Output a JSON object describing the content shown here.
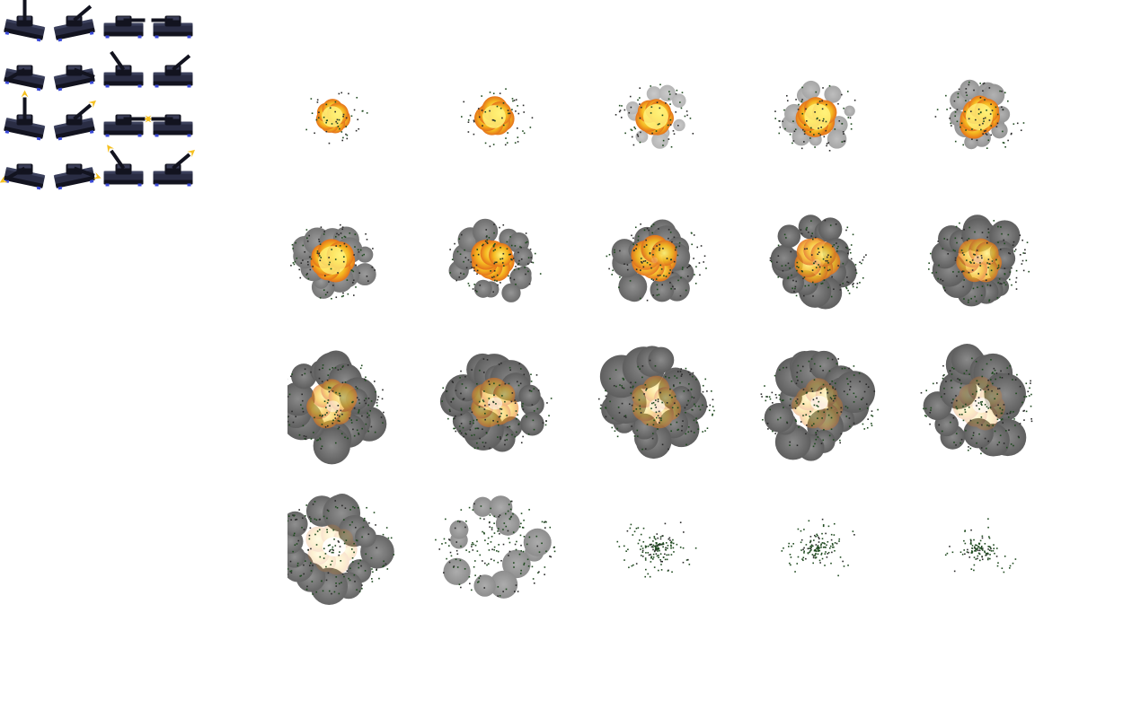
{
  "background": "#ffffff",
  "tank_sheet": {
    "columns": 4,
    "rows": 4,
    "sprites": [
      {
        "name": "tank-sprite-idle-up",
        "variant": "idle",
        "facing": "up"
      },
      {
        "name": "tank-sprite-idle-up-right",
        "variant": "idle",
        "facing": "up-right"
      },
      {
        "name": "tank-sprite-idle-right",
        "variant": "idle",
        "facing": "right"
      },
      {
        "name": "tank-sprite-idle-left",
        "variant": "idle",
        "facing": "left"
      },
      {
        "name": "tank-sprite-idle-down-left",
        "variant": "idle",
        "facing": "down-left"
      },
      {
        "name": "tank-sprite-idle-down-right",
        "variant": "idle",
        "facing": "down-right"
      },
      {
        "name": "tank-sprite-idle-up-left",
        "variant": "idle",
        "facing": "up-left"
      },
      {
        "name": "tank-sprite-idle-up-right-2",
        "variant": "idle",
        "facing": "up-right"
      },
      {
        "name": "tank-sprite-firing-up",
        "variant": "firing",
        "facing": "up"
      },
      {
        "name": "tank-sprite-firing-up-right",
        "variant": "firing",
        "facing": "up-right"
      },
      {
        "name": "tank-sprite-firing-right",
        "variant": "firing",
        "facing": "right"
      },
      {
        "name": "tank-sprite-firing-left",
        "variant": "firing",
        "facing": "left"
      },
      {
        "name": "tank-sprite-firing-down-left",
        "variant": "firing",
        "facing": "down-left"
      },
      {
        "name": "tank-sprite-firing-down-right",
        "variant": "firing",
        "facing": "down-right"
      },
      {
        "name": "tank-sprite-firing-up-left",
        "variant": "firing",
        "facing": "up-left"
      },
      {
        "name": "tank-sprite-firing-up-right-2",
        "variant": "firing",
        "facing": "up-right"
      }
    ],
    "colors": {
      "hull": "#2a2d44",
      "hull_dark": "#12131f",
      "hull_light": "#4a4e6e",
      "tread_accent": "#3a4ad8",
      "muzzle_flash": "#f5c020"
    }
  },
  "explosion_sheet": {
    "columns": 5,
    "rows": 4,
    "frame_count": 20,
    "colors": {
      "core": "#fff27a",
      "fire": "#f5b820",
      "fire_deep": "#e0601a",
      "smoke": "#5e5e5e",
      "smoke_light": "#8a8a8a",
      "debris": "#1f4a1f",
      "ember": "#2a2a2a"
    },
    "frames": [
      {
        "stage": "flash",
        "fire": 1.0,
        "smoke": 0.0,
        "hole": 0.0,
        "debris": 0.05,
        "size": 0.55
      },
      {
        "stage": "flash",
        "fire": 1.0,
        "smoke": 0.0,
        "hole": 0.0,
        "debris": 0.1,
        "size": 0.6
      },
      {
        "stage": "flash",
        "fire": 1.0,
        "smoke": 0.05,
        "hole": 0.0,
        "debris": 0.15,
        "size": 0.65
      },
      {
        "stage": "fireball",
        "fire": 1.0,
        "smoke": 0.15,
        "hole": 0.0,
        "debris": 0.25,
        "size": 0.68
      },
      {
        "stage": "fireball",
        "fire": 0.95,
        "smoke": 0.25,
        "hole": 0.0,
        "debris": 0.3,
        "size": 0.7
      },
      {
        "stage": "fireball",
        "fire": 0.9,
        "smoke": 0.45,
        "hole": 0.0,
        "debris": 0.4,
        "size": 0.74
      },
      {
        "stage": "fireball",
        "fire": 0.85,
        "smoke": 0.5,
        "hole": 0.05,
        "debris": 0.45,
        "size": 0.76
      },
      {
        "stage": "fireball",
        "fire": 0.8,
        "smoke": 0.55,
        "hole": 0.1,
        "debris": 0.5,
        "size": 0.78
      },
      {
        "stage": "fireball",
        "fire": 0.7,
        "smoke": 0.6,
        "hole": 0.15,
        "debris": 0.55,
        "size": 0.8
      },
      {
        "stage": "fireball",
        "fire": 0.6,
        "smoke": 0.65,
        "hole": 0.2,
        "debris": 0.6,
        "size": 0.82
      },
      {
        "stage": "smoke-ring",
        "fire": 0.45,
        "smoke": 0.8,
        "hole": 0.3,
        "debris": 0.7,
        "size": 0.88
      },
      {
        "stage": "smoke-ring",
        "fire": 0.4,
        "smoke": 0.8,
        "hole": 0.32,
        "debris": 0.75,
        "size": 0.9
      },
      {
        "stage": "smoke-ring",
        "fire": 0.3,
        "smoke": 0.8,
        "hole": 0.35,
        "debris": 0.8,
        "size": 0.92
      },
      {
        "stage": "smoke-ring",
        "fire": 0.2,
        "smoke": 0.75,
        "hole": 0.38,
        "debris": 0.85,
        "size": 0.94
      },
      {
        "stage": "smoke-ring",
        "fire": 0.1,
        "smoke": 0.75,
        "hole": 0.4,
        "debris": 0.9,
        "size": 0.95
      },
      {
        "stage": "dissipate",
        "fire": 0.05,
        "smoke": 0.55,
        "hole": 0.55,
        "debris": 0.9,
        "size": 0.95
      },
      {
        "stage": "dissipate",
        "fire": 0.0,
        "smoke": 0.3,
        "hole": 0.7,
        "debris": 0.85,
        "size": 0.95
      },
      {
        "stage": "dissipate",
        "fire": 0.0,
        "smoke": 0.0,
        "hole": 1.0,
        "debris": 0.75,
        "size": 0.95
      },
      {
        "stage": "dissipate",
        "fire": 0.0,
        "smoke": 0.0,
        "hole": 1.0,
        "debris": 0.6,
        "size": 0.95
      },
      {
        "stage": "dissipate",
        "fire": 0.0,
        "smoke": 0.0,
        "hole": 1.0,
        "debris": 0.45,
        "size": 0.95
      }
    ]
  }
}
